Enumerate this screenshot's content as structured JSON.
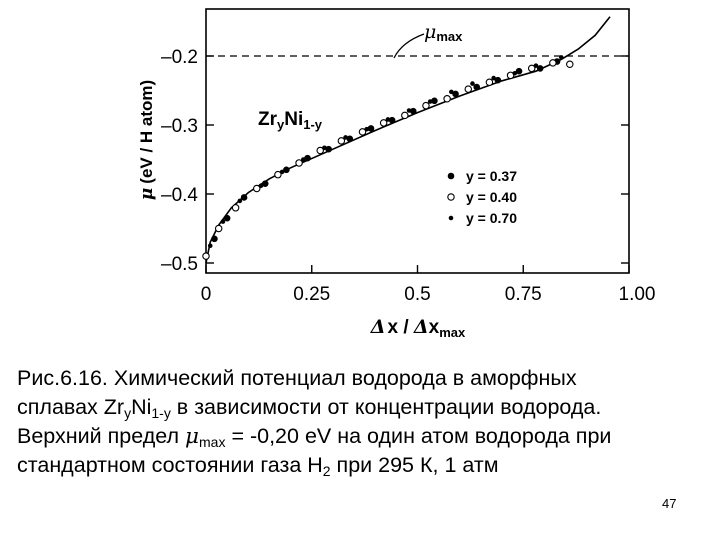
{
  "chart_data": {
    "type": "scatter",
    "ylabel_mu": "μ",
    "ylabel_rest": "(eV / H atom)",
    "xlabel_delta1": "Δ",
    "xlabel_mid": "x / ",
    "xlabel_delta2": "Δ",
    "xlabel_x": "x",
    "xlabel_sub": "max",
    "xlim": [
      0,
      1.0
    ],
    "ylim": [
      -0.5,
      -0.15
    ],
    "x_ticks": [
      0,
      0.25,
      0.5,
      0.75,
      1.0
    ],
    "x_tick_labels": [
      "0",
      "0.25",
      "0.5",
      "0.75",
      "1.00"
    ],
    "y_ticks": [
      -0.2,
      -0.3,
      -0.4,
      -0.5
    ],
    "y_tick_labels": [
      "–0.2",
      "–0.3",
      "–0.4",
      "–0.5"
    ],
    "mu_max_value": -0.2,
    "annotation_mu": "μ",
    "annotation_sub": "max",
    "inset_alloy": "Zr",
    "inset_sub1": "y",
    "inset_mid": "Ni",
    "inset_sub2": "1-y",
    "series": [
      {
        "name": "y = 0.37",
        "marker": "filled-circle",
        "x": [
          0.02,
          0.05,
          0.09,
          0.14,
          0.19,
          0.24,
          0.29,
          0.34,
          0.39,
          0.44,
          0.49,
          0.54,
          0.59,
          0.64,
          0.69,
          0.74,
          0.79,
          0.83
        ],
        "y": [
          -0.465,
          -0.435,
          -0.405,
          -0.385,
          -0.365,
          -0.348,
          -0.335,
          -0.32,
          -0.305,
          -0.293,
          -0.28,
          -0.265,
          -0.255,
          -0.245,
          -0.235,
          -0.222,
          -0.218,
          -0.208
        ]
      },
      {
        "name": "y = 0.40",
        "marker": "open-circle",
        "x": [
          0.0,
          0.03,
          0.07,
          0.12,
          0.17,
          0.22,
          0.27,
          0.32,
          0.37,
          0.42,
          0.47,
          0.52,
          0.57,
          0.62,
          0.67,
          0.72,
          0.77,
          0.82,
          0.86
        ],
        "y": [
          -0.49,
          -0.45,
          -0.42,
          -0.392,
          -0.372,
          -0.355,
          -0.337,
          -0.323,
          -0.31,
          -0.297,
          -0.286,
          -0.272,
          -0.262,
          -0.248,
          -0.238,
          -0.228,
          -0.218,
          -0.21,
          -0.212
        ]
      },
      {
        "name": "y = 0.70",
        "marker": "small-filled-circle",
        "x": [
          0.01,
          0.04,
          0.08,
          0.13,
          0.18,
          0.23,
          0.28,
          0.33,
          0.38,
          0.43,
          0.48,
          0.53,
          0.58,
          0.63,
          0.68,
          0.73,
          0.78,
          0.84
        ],
        "y": [
          -0.475,
          -0.44,
          -0.41,
          -0.388,
          -0.368,
          -0.35,
          -0.333,
          -0.318,
          -0.306,
          -0.292,
          -0.279,
          -0.266,
          -0.252,
          -0.24,
          -0.232,
          -0.225,
          -0.214,
          -0.202
        ]
      }
    ]
  },
  "caption": {
    "line1": "Рис.6.16. Химический потенциал водорода в аморфных",
    "line2_a": "сплавах Zr",
    "line2_sub1": "y",
    "line2_b": "Ni",
    "line2_sub2": "1-y",
    "line2_c": " в зависимости от концентрации водорода.",
    "line3_a": "Верхний предел ",
    "line3_mu": "μ",
    "line3_sub": "max",
    "line3_b": " = -0,20 eV на один атом водорода при",
    "line4_a": "стандартном состоянии газа Н",
    "line4_sub": "2",
    "line4_b": " при 295 К, 1 атм"
  },
  "slide_number": "47"
}
